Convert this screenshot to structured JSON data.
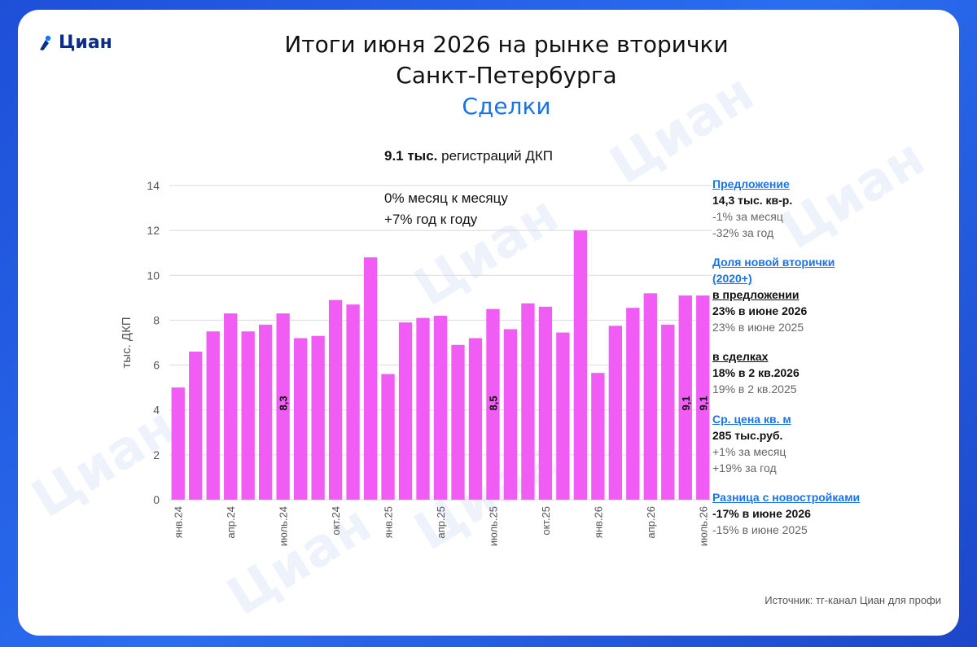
{
  "logo": {
    "text": "Циан",
    "watermark": "Циан"
  },
  "title": {
    "line1": "Итоги июня 2026 на рынке вторички",
    "line2": "Санкт-Петербурга",
    "line3": "Сделки"
  },
  "chart_head": {
    "bold": "9.1 тыс.",
    "rest": " регистраций ДКП",
    "mom": "0% месяц к месяцу",
    "yoy": "+7% год к году"
  },
  "chart_data": {
    "type": "bar",
    "ylabel": "тыс. ДКП",
    "ylim": [
      0,
      14
    ],
    "yticks": [
      0,
      2,
      4,
      6,
      8,
      10,
      12,
      14
    ],
    "categories": [
      "янв.24",
      "фев.24",
      "мар.24",
      "апр.24",
      "май.24",
      "июн.24",
      "июль.24",
      "авг.24",
      "сен.24",
      "окт.24",
      "ноя.24",
      "дек.24",
      "янв.25",
      "фев.25",
      "мар.25",
      "апр.25",
      "май.25",
      "июн.25",
      "июль.25",
      "авг.25",
      "сен.25",
      "окт.25",
      "ноя.25",
      "дек.25",
      "янв.26",
      "фев.26",
      "мар.26",
      "апр.26",
      "май.26",
      "июн.26",
      "июль.26"
    ],
    "tick_labels": [
      "янв.24",
      "",
      "",
      "апр.24",
      "",
      "",
      "июль.24",
      "",
      "",
      "окт.24",
      "",
      "",
      "янв.25",
      "",
      "",
      "апр.25",
      "",
      "",
      "июль.25",
      "",
      "",
      "окт.25",
      "",
      "",
      "янв.26",
      "",
      "",
      "апр.26",
      "",
      "",
      "июль.26"
    ],
    "values": [
      5.0,
      6.6,
      7.5,
      8.3,
      7.5,
      7.8,
      8.3,
      7.2,
      7.3,
      8.9,
      8.7,
      10.8,
      5.6,
      7.9,
      8.1,
      8.2,
      6.9,
      7.2,
      8.5,
      7.6,
      8.75,
      8.6,
      7.45,
      12.0,
      5.65,
      7.75,
      8.55,
      9.2,
      7.8,
      9.1,
      9.1
    ],
    "data_labels": [
      {
        "index": 6,
        "text": "8,3"
      },
      {
        "index": 18,
        "text": "8,5"
      },
      {
        "index": 29,
        "text": "9,1"
      },
      {
        "index": 30,
        "text": "9,1"
      }
    ],
    "bar_color": "#f15cf5",
    "grid": true
  },
  "side": {
    "s1": {
      "head": "Предложение",
      "v1": "14,3 тыс. кв-р.",
      "v2": "-1% за месяц",
      "v3": "-32% за год"
    },
    "s2": {
      "head1": "Доля новой вторички",
      "head2": "(2020+)",
      "sub1": "в предложении",
      "v1": "23% в июне 2026",
      "v2": "23% в июне 2025",
      "sub2": "в сделках",
      "v3": "18% в 2 кв.2026",
      "v4": "19% в 2 кв.2025"
    },
    "s3": {
      "head": "Ср. цена кв. м",
      "v1": "285 тыс.руб.",
      "v2": "+1% за месяц",
      "v3": "+19% за год"
    },
    "s4": {
      "head": "Разница с новостройками",
      "v1": "-17% в июне 2026",
      "v2": "-15% в июне  2025"
    }
  },
  "source": "Источник: тг-канал Циан для профи",
  "colors": {
    "accent": "#1a73e8",
    "background": "#1e4fd8",
    "bars": "#f15cf5"
  }
}
